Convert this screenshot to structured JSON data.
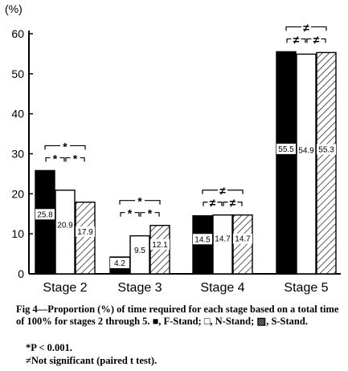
{
  "chart_data": {
    "type": "bar",
    "ylabel": "(%)",
    "ylim": [
      0,
      60
    ],
    "yticks": [
      0,
      10,
      20,
      30,
      40,
      50,
      60
    ],
    "categories": [
      "Stage 2",
      "Stage 3",
      "Stage 4",
      "Stage 5"
    ],
    "series": [
      {
        "key": "F",
        "fill": "black",
        "values": [
          25.8,
          4.2,
          14.5,
          55.5
        ],
        "labels": [
          "25.8",
          "4.2",
          "14.5",
          "55.5"
        ]
      },
      {
        "key": "N",
        "fill": "white",
        "values": [
          20.9,
          9.5,
          14.7,
          54.9
        ],
        "labels": [
          "20.9",
          "9.5",
          "14.7",
          "54.9"
        ]
      },
      {
        "key": "S",
        "fill": "hatched",
        "values": [
          17.9,
          12.1,
          14.7,
          55.3
        ],
        "labels": [
          "17.9",
          "12.1",
          "14.7",
          "55.3"
        ]
      }
    ],
    "annotations": [
      {
        "category": "Stage 2",
        "outer": "*",
        "pair12": "*",
        "pair23": "*"
      },
      {
        "category": "Stage 3",
        "outer": "*",
        "pair12": "*",
        "pair23": "*"
      },
      {
        "category": "Stage 4",
        "outer": "≠",
        "pair12": "≠",
        "pair23": "≠"
      },
      {
        "category": "Stage 5",
        "outer": "≠",
        "pair12": "≠",
        "pair23": "≠"
      }
    ]
  },
  "caption": {
    "main": "Fig 4—Proportion (%) of time required for each stage based on a total time of 100% for stages 2 through 5. ■, F-Stand; □, N-Stand; ▨, S-Stand.",
    "note1": "*P < 0.001.",
    "note2": "≠Not significant (paired t test)."
  }
}
